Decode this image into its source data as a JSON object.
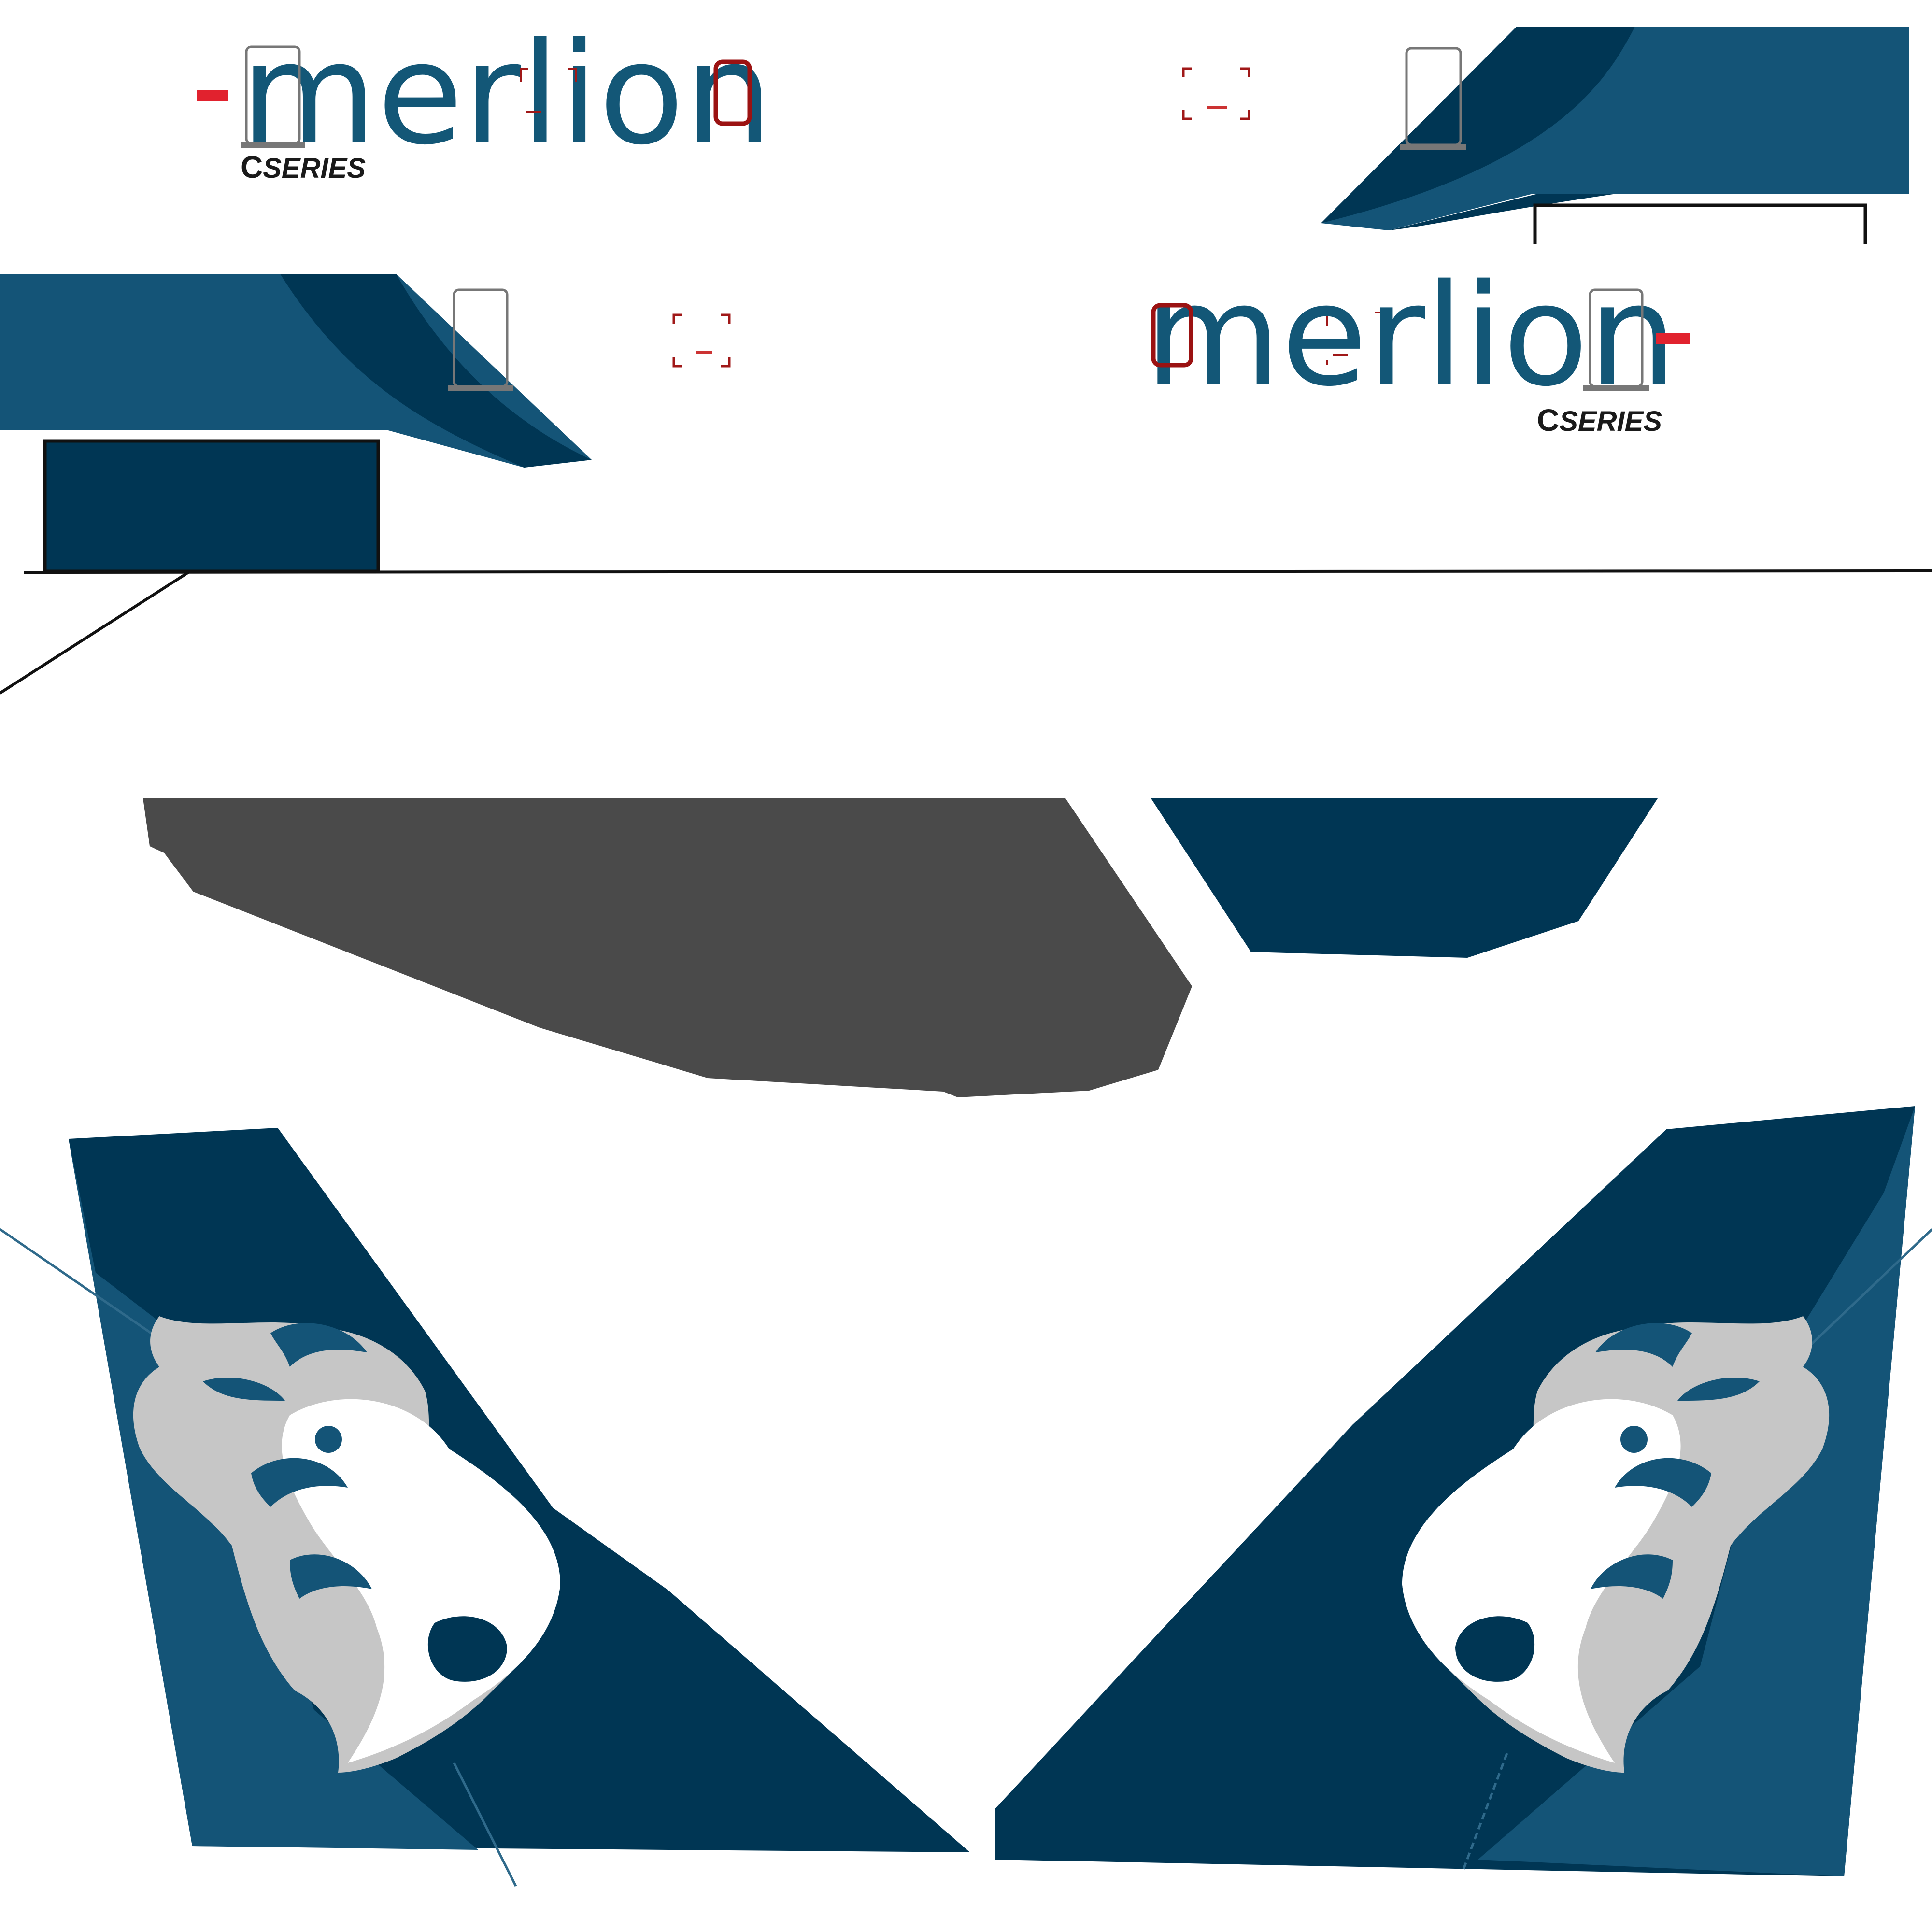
{
  "livery": {
    "left_side": {
      "brand": "merlion",
      "series_prefix": "C",
      "series_suffix": "SERIES"
    },
    "right_side": {
      "brand": "merlion",
      "series_prefix": "C",
      "series_suffix": "SERIES"
    }
  },
  "colors": {
    "navy": "#003654",
    "blue": "#145477",
    "brand_text": "#135777",
    "grey_panel": "#4a4a4a",
    "lion_grey": "#c6c6c6",
    "accent_red": "#e1222e",
    "outline": "#111111"
  }
}
